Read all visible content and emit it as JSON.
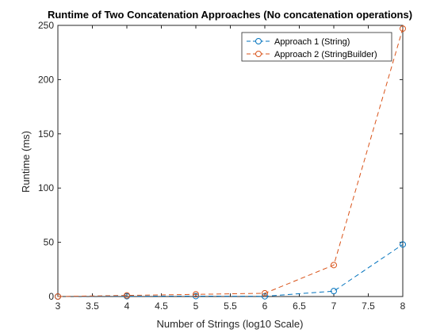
{
  "chart_data": {
    "type": "line",
    "title": "Runtime of Two Concatenation Approaches (No concatenation operations)",
    "xlabel": "Number of Strings (log10 Scale)",
    "ylabel": "Runtime (ms)",
    "xlim": [
      3,
      8
    ],
    "ylim": [
      0,
      250
    ],
    "x_ticks": [
      3,
      3.5,
      4,
      4.5,
      5,
      5.5,
      6,
      6.5,
      7,
      7.5,
      8
    ],
    "x_tick_labels": [
      "3",
      "3.5",
      "4",
      "4.5",
      "5",
      "5.5",
      "6",
      "6.5",
      "7",
      "7.5",
      "8"
    ],
    "y_ticks": [
      0,
      50,
      100,
      150,
      200,
      250
    ],
    "y_tick_labels": [
      "0",
      "50",
      "100",
      "150",
      "200",
      "250"
    ],
    "grid": false,
    "legend_position": "top-right",
    "series": [
      {
        "name": "Approach 1 (String)",
        "color": "#0072BD",
        "line_style": "dashed",
        "marker": "circle",
        "x": [
          3,
          4,
          5,
          6,
          7,
          8
        ],
        "y": [
          0,
          0.3,
          0.4,
          0.2,
          5,
          48
        ]
      },
      {
        "name": "Approach 2 (StringBuilder)",
        "color": "#D95319",
        "line_style": "dashed",
        "marker": "circle",
        "x": [
          3,
          4,
          5,
          6,
          7,
          8
        ],
        "y": [
          0,
          1,
          2,
          3,
          29,
          247
        ]
      }
    ]
  }
}
